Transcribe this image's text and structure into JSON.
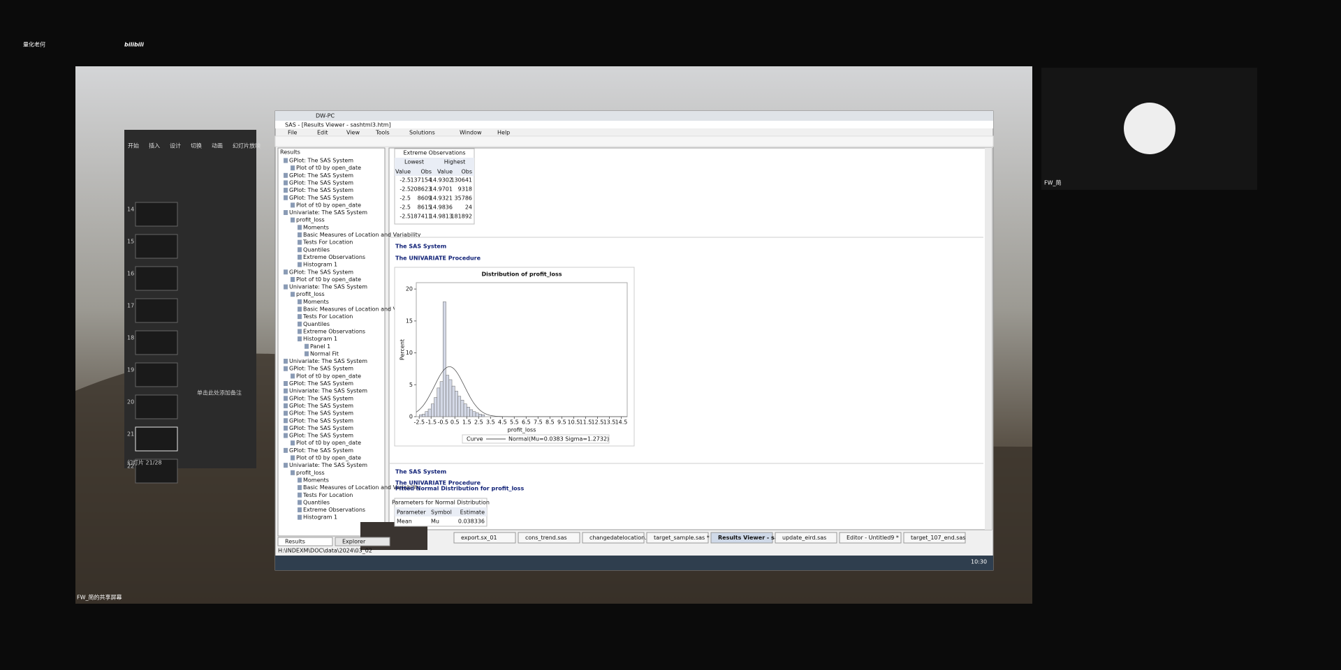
{
  "logo": {
    "title": "量化老何",
    "brand": "bilibili"
  },
  "screen_share": {
    "label": "FW_简的共享屏幕"
  },
  "participant": {
    "name": "FW_简"
  },
  "powerpoint": {
    "tabs": [
      "开始",
      "插入",
      "设计",
      "切换",
      "动画",
      "幻灯片放映"
    ],
    "slide_numbers": [
      "14",
      "15",
      "16",
      "17",
      "18",
      "19",
      "20",
      "21",
      "22"
    ],
    "status": "幻灯片 21/28",
    "note": "单击此处添加备注"
  },
  "sas": {
    "browser_tab": "DW-PC",
    "title": "SAS - [Results Viewer - sashtml3.htm]",
    "menu": [
      "File",
      "Edit",
      "View",
      "Tools",
      "Solutions",
      "Window",
      "Help"
    ],
    "results_header": "Results",
    "tree": [
      "GPlot: The SAS System",
      "Plot of t0 by open_date",
      "GPlot: The SAS System",
      "GPlot: The SAS System",
      "GPlot: The SAS System",
      "GPlot: The SAS System",
      "Plot of t0 by open_date",
      "Univariate: The SAS System",
      "profit_loss",
      "Moments",
      "Basic Measures of Location and Variability",
      "Tests For Location",
      "Quantiles",
      "Extreme Observations",
      "Histogram 1",
      "GPlot: The SAS System",
      "Plot of t0 by open_date",
      "Univariate: The SAS System",
      "profit_loss",
      "Moments",
      "Basic Measures of Location and Variability",
      "Tests For Location",
      "Quantiles",
      "Extreme Observations",
      "Histogram 1",
      "Panel 1",
      "Normal Fit",
      "Univariate: The SAS System",
      "GPlot: The SAS System",
      "Plot of t0 by open_date",
      "GPlot: The SAS System",
      "Univariate: The SAS System",
      "GPlot: The SAS System",
      "GPlot: The SAS System",
      "GPlot: The SAS System",
      "GPlot: The SAS System",
      "GPlot: The SAS System",
      "GPlot: The SAS System",
      "Plot of t0 by open_date",
      "GPlot: The SAS System",
      "Plot of t0 by open_date",
      "Univariate: The SAS System",
      "profit_loss",
      "Moments",
      "Basic Measures of Location and Variability",
      "Tests For Location",
      "Quantiles",
      "Extreme Observations",
      "Histogram 1"
    ],
    "extreme": {
      "caption": "Extreme Observations",
      "groups": [
        "Lowest",
        "Highest"
      ],
      "columns": [
        "Value",
        "Obs",
        "Value",
        "Obs"
      ],
      "rows": [
        [
          "-2.5",
          "137154",
          "14.9302",
          "130641"
        ],
        [
          "-2.5",
          "208623",
          "14.9701",
          "9318"
        ],
        [
          "-2.5",
          "8609",
          "14.9321",
          "35786"
        ],
        [
          "-2.5",
          "8615",
          "14.9836",
          "24"
        ],
        [
          "-2.5",
          "187411",
          "14.9813",
          "181892"
        ]
      ]
    },
    "heading1": "The SAS System",
    "procedure1": "The UNIVARIATE Procedure",
    "heading2": "The SAS System",
    "procedure2": "The UNIVARIATE Procedure",
    "subtitle2": "Fitted Normal Distribution for profit_loss",
    "params": {
      "caption": "Parameters for Normal Distribution",
      "columns": [
        "Parameter",
        "Symbol",
        "Estimate"
      ],
      "rows": [
        [
          "Mean",
          "Mu",
          "0.038336"
        ]
      ]
    },
    "panel_tabs": [
      "Results",
      "Explorer"
    ],
    "tabs": [
      "export.sx_01",
      "cons_trend.sas",
      "changedatelocation.sas",
      "target_sample.sas *",
      "Results Viewer - sas...",
      "update_eird.sas",
      "Editor - Untitled9 *",
      "target_107_end.sas"
    ],
    "status_path": "H:\\INDEXM\\DOC\\data\\2024\\03_02",
    "clock": "10:30"
  },
  "chart_data": {
    "type": "histogram",
    "title": "Distribution of profit_loss",
    "x_label": "profit_loss",
    "y_label": "Percent",
    "bins": [
      -2.5,
      -2.25,
      -2,
      -1.75,
      -1.5,
      -1.25,
      -1,
      -0.75,
      -0.5,
      -0.25,
      0,
      0.25,
      0.5,
      0.75,
      1,
      1.25,
      1.5,
      1.75,
      2,
      2.25,
      2.5,
      2.75,
      3
    ],
    "values": [
      0.3,
      0.4,
      0.8,
      1.2,
      2.0,
      3.0,
      4.5,
      5.5,
      18.0,
      6.5,
      5.8,
      4.8,
      4.0,
      3.2,
      2.6,
      2.0,
      1.5,
      1.1,
      0.8,
      0.6,
      0.4,
      0.3
    ],
    "xlim": [
      -2.75,
      15
    ],
    "xticks": [
      -2.5,
      -1.5,
      -0.5,
      0.5,
      1.5,
      2.5,
      3.5,
      4.5,
      5.5,
      6.5,
      7.5,
      8.5,
      9.5,
      10.5,
      11.5,
      12.5,
      13.5,
      14.5
    ],
    "ylim": [
      0,
      21
    ],
    "yticks": [
      0,
      5,
      10,
      15,
      20
    ],
    "color": "#d3d8e6",
    "legend_title": "Curve",
    "curve": {
      "label": "Normal(Mu=0.0383 Sigma=1.2732)",
      "mu": 0.0383,
      "sigma": 1.2732
    }
  }
}
